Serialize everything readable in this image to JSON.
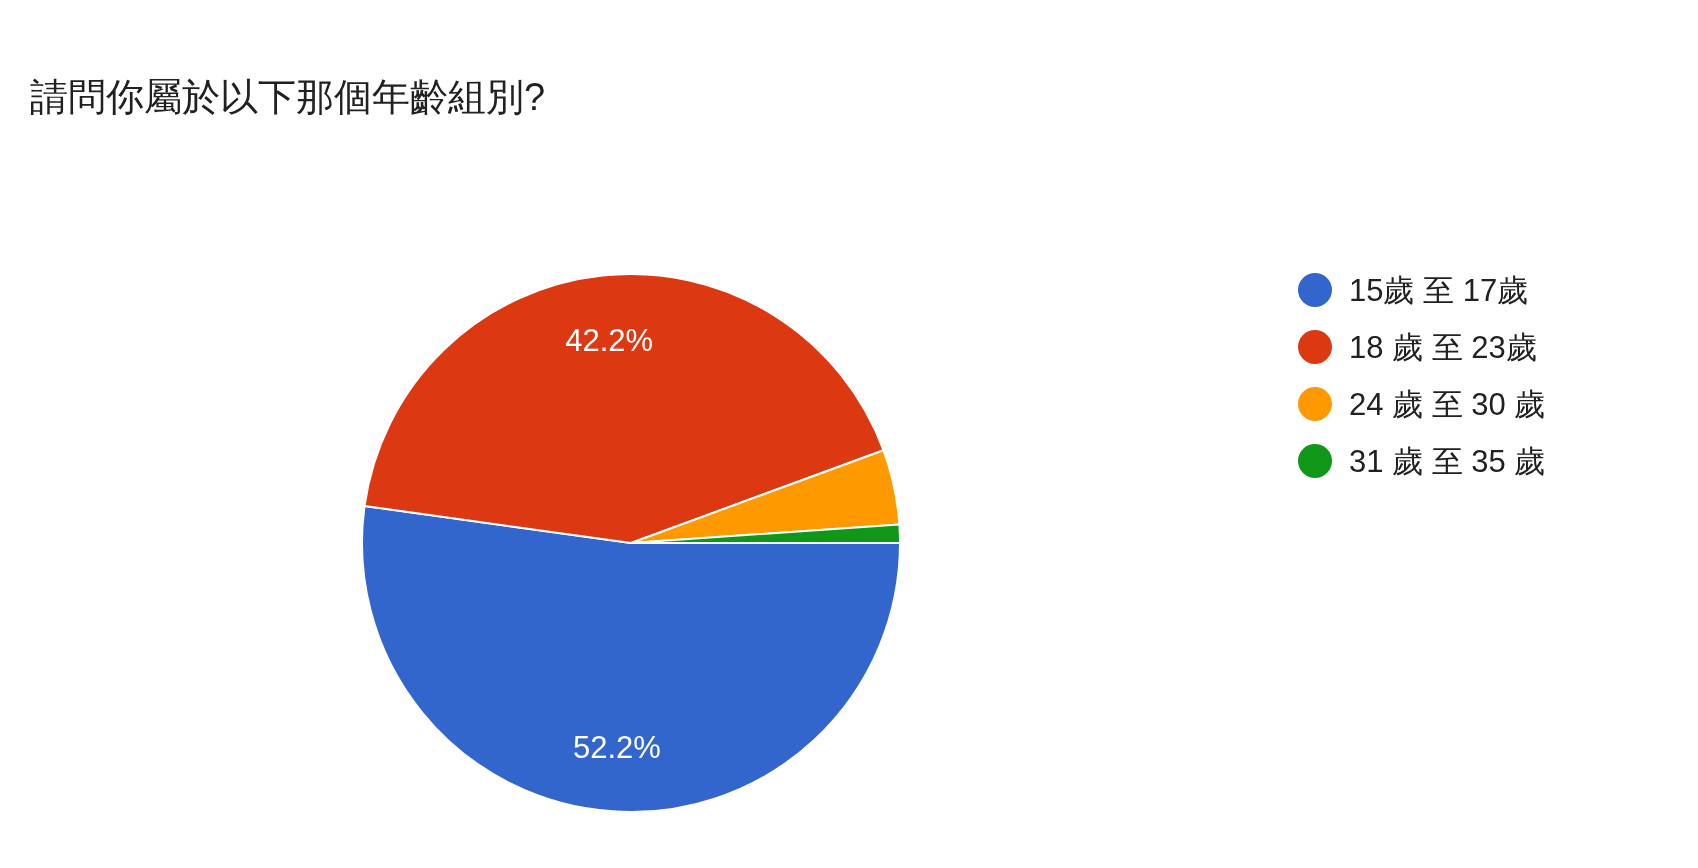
{
  "chart_data": {
    "type": "pie",
    "title": "請問你屬於以下那個年齡組別?",
    "categories": [
      "15歲 至 17歲",
      "18 歲 至 23歲",
      "24 歲 至 30 歲",
      "31 歲 至 35 歲"
    ],
    "values": [
      52.2,
      42.2,
      4.5,
      1.1
    ],
    "value_labels": [
      "52.2%",
      "42.2%",
      null,
      null
    ],
    "colors": [
      "#3366cc",
      "#dc3912",
      "#ff9900",
      "#109618"
    ],
    "legend": "right"
  }
}
